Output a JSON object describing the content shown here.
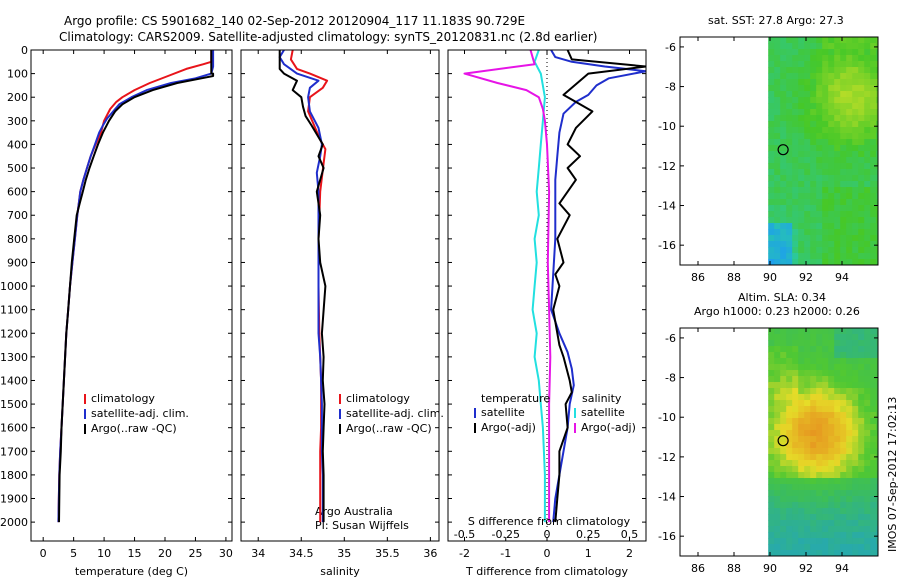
{
  "titles": {
    "line1": "Argo profile: CS 5901682_140 02-Sep-2012 20120904_117 11.183S 90.729E",
    "line2": "Climatology: CARS2009. Satellite-adjusted climatology: synTS_20120831.nc (2.8d earlier)",
    "sst_title": "sat. SST: 27.8 Argo: 27.3",
    "sla_title1": "Altim. SLA: 0.34",
    "sla_title2": "Argo h1000: 0.23 h2000: 0.26",
    "side_stamp": "IMOS 07-Sep-2012 17:02:13",
    "credit1": "Argo Australia",
    "credit2": "PI: Susan Wijffels"
  },
  "colors": {
    "climatology": "#e8141a",
    "satellite": "#1f2ecc",
    "argo": "#000000",
    "argo_salinity_diff": "#e614e6",
    "satellite_salinity_diff": "#22e0e0"
  },
  "chart_data": [
    {
      "type": "line",
      "name": "temperature",
      "xlabel": "temperature (deg C)",
      "xlim": [
        -2,
        31
      ],
      "xticks": [
        0,
        5,
        10,
        15,
        20,
        25,
        30
      ],
      "ylim": [
        2080,
        0
      ],
      "yticks": [
        0,
        100,
        200,
        300,
        400,
        500,
        600,
        700,
        800,
        900,
        1000,
        1100,
        1200,
        1300,
        1400,
        1500,
        1600,
        1700,
        1800,
        1900,
        2000
      ],
      "legend": [
        "climatology",
        "satellite-adj. clim.",
        "Argo(..raw -QC)"
      ],
      "series": [
        {
          "name": "climatology",
          "color_key": "climatology",
          "x": [
            27.6,
            27.6,
            26.3,
            23.5,
            20.5,
            17.5,
            15,
            13,
            12,
            11,
            10,
            9.5,
            8.6,
            7.8,
            7.2,
            6.6,
            6.1,
            5.6,
            5.2,
            4.8,
            4.4,
            4.1,
            3.8,
            3.6,
            3.4,
            3.2,
            3.0,
            2.8,
            2.65,
            2.5
          ],
          "y": [
            0,
            50,
            60,
            80,
            110,
            140,
            170,
            200,
            220,
            250,
            300,
            350,
            400,
            450,
            500,
            550,
            600,
            700,
            800,
            900,
            1000,
            1100,
            1200,
            1300,
            1400,
            1500,
            1600,
            1700,
            1800,
            2000
          ]
        },
        {
          "name": "satellite-adj. clim.",
          "color_key": "satellite",
          "x": [
            27.9,
            27.9,
            27.6,
            25,
            21,
            17,
            14.5,
            12.5,
            11.5,
            10.5,
            9.8,
            9.2,
            8.5,
            7.8,
            7.2,
            6.6,
            6.1,
            5.6,
            5.2,
            4.8,
            4.4,
            4.1,
            3.8,
            3.6,
            3.4,
            3.2,
            3.0,
            2.8,
            2.65,
            2.5
          ],
          "y": [
            0,
            70,
            100,
            120,
            140,
            170,
            200,
            230,
            260,
            290,
            320,
            350,
            400,
            450,
            500,
            550,
            600,
            700,
            800,
            900,
            1000,
            1100,
            1200,
            1300,
            1400,
            1500,
            1600,
            1700,
            1800,
            2000
          ]
        },
        {
          "name": "Argo(..raw -QC)",
          "color_key": "argo",
          "x": [
            27.6,
            27.6,
            27.9,
            27.9,
            26,
            22,
            18,
            15,
            13,
            11.8,
            10.8,
            9.8,
            9,
            8.3,
            7.6,
            7,
            6.5,
            6,
            5.5,
            5.1,
            4.7,
            4.4,
            4.1,
            3.8,
            3.6,
            3.4,
            3.2,
            3.0,
            2.9,
            2.7,
            2.6
          ],
          "y": [
            0,
            100,
            100,
            110,
            120,
            140,
            170,
            200,
            230,
            260,
            300,
            350,
            400,
            450,
            500,
            550,
            600,
            650,
            700,
            800,
            900,
            1000,
            1100,
            1200,
            1300,
            1400,
            1500,
            1600,
            1700,
            1800,
            2000
          ]
        }
      ]
    },
    {
      "type": "line",
      "name": "salinity",
      "xlabel": "salinity",
      "xlim": [
        33.8,
        36.1
      ],
      "xticks": [
        34,
        34.5,
        35,
        35.5,
        36
      ],
      "ylim": [
        2080,
        0
      ],
      "legend": [
        "climatology",
        "satellite-adj. clim.",
        "Argo(..raw -QC)"
      ],
      "series": [
        {
          "name": "climatology",
          "color_key": "climatology",
          "x": [
            34.4,
            34.38,
            34.45,
            34.6,
            34.8,
            34.75,
            34.6,
            34.58,
            34.65,
            34.72,
            34.78,
            34.76,
            34.72,
            34.7,
            34.7,
            34.71,
            34.72,
            34.73,
            34.73,
            34.73,
            34.72,
            34.72,
            34.72,
            34.72
          ],
          "y": [
            0,
            40,
            80,
            100,
            130,
            160,
            200,
            260,
            320,
            380,
            420,
            480,
            600,
            800,
            1000,
            1200,
            1300,
            1400,
            1500,
            1600,
            1700,
            1800,
            1900,
            2000
          ]
        },
        {
          "name": "satellite-adj. clim.",
          "color_key": "satellite",
          "x": [
            34.3,
            34.25,
            34.3,
            34.45,
            34.7,
            34.6,
            34.58,
            34.6,
            34.7,
            34.74,
            34.72,
            34.68,
            34.7,
            34.7,
            34.7,
            34.7,
            34.72,
            34.73,
            34.74,
            34.74,
            34.74,
            34.75,
            34.75,
            34.75
          ],
          "y": [
            0,
            30,
            60,
            100,
            130,
            160,
            200,
            260,
            330,
            400,
            450,
            520,
            600,
            800,
            1000,
            1200,
            1300,
            1400,
            1500,
            1600,
            1700,
            1800,
            1900,
            2000
          ]
        },
        {
          "name": "Argo(..raw -QC)",
          "color_key": "argo",
          "x": [
            34.25,
            34.25,
            34.3,
            34.45,
            34.4,
            34.5,
            34.52,
            34.55,
            34.62,
            34.75,
            34.7,
            34.76,
            34.68,
            34.72,
            34.7,
            34.72,
            34.78,
            34.74,
            34.76,
            34.75,
            34.77,
            34.76,
            34.75,
            34.76,
            34.76
          ],
          "y": [
            0,
            80,
            100,
            130,
            170,
            200,
            240,
            280,
            320,
            400,
            450,
            500,
            600,
            700,
            800,
            900,
            1000,
            1200,
            1300,
            1400,
            1500,
            1600,
            1700,
            1800,
            2000
          ]
        }
      ]
    },
    {
      "type": "line",
      "name": "difference",
      "xlabel": "T difference from climatology",
      "xlabel_top": "S difference from climatology",
      "xlim": [
        -2.4,
        2.4
      ],
      "xticks_T": [
        -2,
        -1,
        0,
        1,
        2
      ],
      "xticks_S": [
        -0.5,
        -0.25,
        0,
        0.25,
        0.5
      ],
      "s_scale": 4,
      "ylim": [
        2080,
        0
      ],
      "legend_temperature_title": "temperature",
      "legend_salinity_title": "salinity",
      "legend_temperature": [
        "satellite",
        "Argo(-adj)"
      ],
      "legend_salinity": [
        "satellite",
        "Argo(-adj)"
      ],
      "series": [
        {
          "name": "T satellite",
          "color_key": "satellite",
          "x": [
            0.1,
            0.2,
            0.6,
            1.4,
            2.4,
            1.5,
            1.2,
            1.0,
            0.7,
            0.4,
            0.3,
            0.25,
            0.2,
            0.2,
            0.2,
            0.15,
            0.1,
            0.2,
            0.3,
            0.5,
            0.6,
            0.65,
            0.55,
            0.5,
            0.4,
            0.3,
            0.2,
            0.15
          ],
          "y": [
            0,
            30,
            50,
            70,
            90,
            120,
            150,
            190,
            220,
            270,
            350,
            450,
            550,
            650,
            800,
            950,
            1100,
            1150,
            1200,
            1280,
            1350,
            1420,
            1500,
            1600,
            1700,
            1800,
            1900,
            2000
          ]
        },
        {
          "name": "T Argo",
          "color_key": "argo",
          "x": [
            0.5,
            0.6,
            2.4,
            1.0,
            0.4,
            0.8,
            1.1,
            0.7,
            0.5,
            0.8,
            0.5,
            0.7,
            0.3,
            0.55,
            0.25,
            0.4,
            0.2,
            0.3,
            0.15,
            0.3,
            0.4,
            0.55,
            0.6,
            0.45,
            0.5,
            0.3,
            0.3,
            0.25,
            0.2
          ],
          "y": [
            0,
            40,
            70,
            100,
            190,
            230,
            260,
            330,
            400,
            450,
            500,
            550,
            650,
            700,
            800,
            900,
            950,
            1000,
            1100,
            1250,
            1300,
            1400,
            1450,
            1500,
            1600,
            1700,
            1800,
            1900,
            2000
          ]
        },
        {
          "name": "S satellite",
          "color_key": "satellite_salinity_diff",
          "x": [
            -0.2,
            -0.3,
            -0.15,
            -0.05,
            -0.1,
            -0.15,
            -0.2,
            -0.25,
            -0.2,
            -0.3,
            -0.25,
            -0.3,
            -0.35,
            -0.25,
            -0.3,
            -0.2,
            -0.15,
            -0.1,
            -0.05,
            -0.05
          ],
          "y": [
            0,
            50,
            100,
            200,
            300,
            400,
            500,
            600,
            700,
            800,
            900,
            1000,
            1100,
            1200,
            1300,
            1400,
            1500,
            1600,
            1800,
            2000
          ]
        },
        {
          "name": "S Argo",
          "color_key": "argo_salinity_diff",
          "x": [
            -0.4,
            -0.3,
            -2.0,
            -1.2,
            -0.5,
            -0.2,
            -0.1,
            -0.05,
            0.0,
            0.05,
            0.02,
            0.05,
            0.08,
            0.05,
            0.05,
            0.05,
            0.05
          ],
          "y": [
            0,
            60,
            100,
            140,
            170,
            200,
            250,
            300,
            400,
            600,
            900,
            1100,
            1300,
            1500,
            1700,
            1900,
            2000
          ]
        }
      ]
    },
    {
      "type": "heatmap",
      "name": "sst_map",
      "xlim": [
        85,
        96
      ],
      "ylim": [
        -17,
        -5.5
      ],
      "xticks": [
        86,
        88,
        90,
        92,
        94
      ],
      "yticks": [
        -6,
        -8,
        -10,
        -12,
        -14,
        -16
      ],
      "data_x_range": [
        89.9,
        96
      ],
      "float_position": [
        90.729,
        -11.183
      ]
    },
    {
      "type": "heatmap",
      "name": "sla_map",
      "xlim": [
        85,
        96
      ],
      "ylim": [
        -17,
        -5.5
      ],
      "xticks": [
        86,
        88,
        90,
        92,
        94
      ],
      "yticks": [
        -6,
        -8,
        -10,
        -12,
        -14,
        -16
      ],
      "data_x_range": [
        89.9,
        96
      ],
      "float_position": [
        90.729,
        -11.183
      ]
    }
  ]
}
